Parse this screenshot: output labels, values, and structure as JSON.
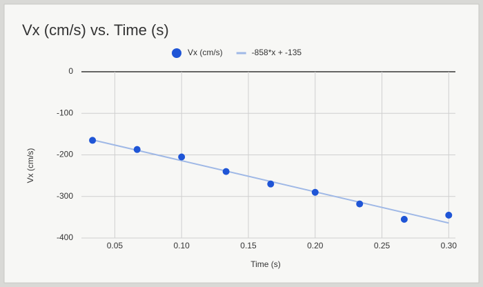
{
  "chart_data": {
    "type": "scatter",
    "title": "Vx (cm/s) vs. Time (s)",
    "x_label": "Time (s)",
    "y_label": "Vx (cm/s)",
    "series": [
      {
        "name": "Vx (cm/s)",
        "color": "#1f55d6",
        "x": [
          0.0333,
          0.0667,
          0.1,
          0.1333,
          0.1667,
          0.2,
          0.2333,
          0.2667,
          0.3
        ],
        "values": [
          -165,
          -187,
          -205,
          -240,
          -270,
          -290,
          -318,
          -355,
          -345
        ]
      }
    ],
    "trendline": {
      "name": "-858*x + -135",
      "color": "#9fb8e6"
    },
    "xlim": [
      0.025,
      0.305
    ],
    "xticks": [
      0.05,
      {
        "value": 0.1,
        "label": "0.10"
      },
      0.15,
      {
        "value": 0.2,
        "label": "0.20"
      },
      0.25,
      {
        "value": 0.3,
        "label": "0.30"
      }
    ],
    "ylim": [
      -400,
      0
    ],
    "yticks": [
      0,
      -100,
      -200,
      -300,
      -400
    ],
    "grid": true,
    "legend": "top"
  }
}
